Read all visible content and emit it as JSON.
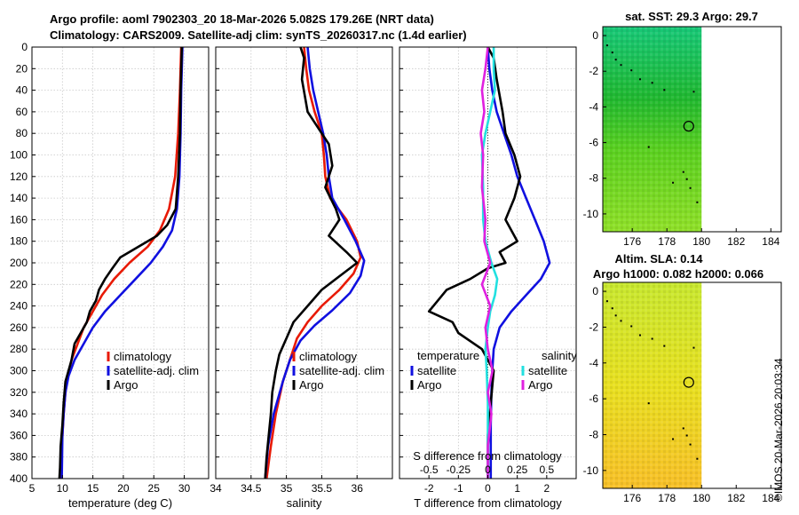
{
  "header": {
    "title_line1": "Argo profile: aoml 7902303_20 18-Mar-2026 5.082S 179.26E (NRT data)",
    "title_line2": "Climatology: CARS2009. Satellite-adj clim: synTS_20260317.nc (1.4d earlier)"
  },
  "stamp": "©IMOS 20-Mar-2026 20:03:34",
  "colors": {
    "climatology": "#e81a05",
    "satellite": "#1010e0",
    "argo": "#000000",
    "cyan": "#22e0e0",
    "magenta": "#e020e0"
  },
  "chart_data": [
    {
      "id": "temperature",
      "type": "line",
      "xlabel": "temperature (deg C)",
      "ylabel": "",
      "xlim": [
        5,
        34
      ],
      "ylim": [
        400,
        0
      ],
      "xticks": [
        5,
        10,
        15,
        20,
        25,
        30
      ],
      "yticks": [
        0,
        20,
        40,
        60,
        80,
        100,
        120,
        140,
        160,
        180,
        200,
        220,
        240,
        260,
        280,
        300,
        320,
        340,
        360,
        380,
        400
      ],
      "legend": [
        "climatology",
        "satellite-adj. clim",
        "Argo"
      ],
      "series": [
        {
          "name": "climatology",
          "color_key": "climatology",
          "x": [
            29.5,
            29.4,
            29.3,
            29.0,
            28.5,
            27.5,
            26.0,
            24.0,
            21.0,
            18.5,
            16.5,
            15.0,
            13.5,
            12.5,
            11.5,
            10.9,
            10.5,
            10.2,
            10.0,
            9.8,
            9.7
          ],
          "y": [
            0,
            20,
            40,
            80,
            120,
            150,
            170,
            185,
            200,
            215,
            230,
            245,
            260,
            275,
            290,
            305,
            320,
            340,
            360,
            380,
            400
          ]
        },
        {
          "name": "satellite-adj. clim",
          "color_key": "satellite",
          "x": [
            29.7,
            29.6,
            29.5,
            29.4,
            29.2,
            28.8,
            28.0,
            26.5,
            24.5,
            22.0,
            19.5,
            17.0,
            15.0,
            13.5,
            12.0,
            11.0,
            10.5,
            10.2,
            10.0,
            9.9
          ],
          "y": [
            0,
            20,
            40,
            80,
            120,
            150,
            170,
            185,
            200,
            215,
            230,
            245,
            260,
            275,
            290,
            305,
            320,
            340,
            360,
            400
          ]
        },
        {
          "name": "Argo",
          "color_key": "argo",
          "x": [
            29.6,
            29.5,
            29.4,
            29.3,
            29.0,
            28.6,
            27.2,
            25.5,
            22.5,
            19.5,
            18.2,
            17.0,
            16.0,
            15.5,
            14.5,
            14.0,
            13.0,
            12.0,
            11.5,
            11.0,
            10.5,
            10.2,
            10.0,
            9.7,
            9.6,
            9.5
          ],
          "y": [
            0,
            20,
            40,
            80,
            120,
            150,
            165,
            175,
            185,
            195,
            205,
            215,
            225,
            235,
            245,
            255,
            265,
            275,
            290,
            300,
            310,
            330,
            350,
            370,
            390,
            400
          ]
        }
      ]
    },
    {
      "id": "salinity",
      "type": "line",
      "xlabel": "salinity",
      "ylabel": "",
      "xlim": [
        34,
        36.5
      ],
      "ylim": [
        400,
        0
      ],
      "xticks": [
        34,
        34.5,
        35,
        35.5,
        36
      ],
      "legend": [
        "climatology",
        "satellite-adj. clim",
        "Argo"
      ],
      "series": [
        {
          "name": "climatology",
          "color_key": "climatology",
          "x": [
            35.25,
            35.28,
            35.32,
            35.4,
            35.5,
            35.53,
            35.55,
            35.62,
            35.85,
            36.0,
            36.05,
            35.95,
            35.75,
            35.5,
            35.3,
            35.15,
            35.05,
            34.95,
            34.85,
            34.78,
            34.72
          ],
          "y": [
            0,
            20,
            40,
            60,
            80,
            100,
            120,
            140,
            160,
            180,
            195,
            210,
            225,
            240,
            255,
            270,
            290,
            310,
            340,
            370,
            400
          ]
        },
        {
          "name": "satellite-adj. clim",
          "color_key": "satellite",
          "x": [
            35.3,
            35.33,
            35.38,
            35.45,
            35.52,
            35.57,
            35.6,
            35.65,
            35.82,
            35.98,
            36.1,
            36.05,
            35.9,
            35.65,
            35.4,
            35.2,
            35.05,
            34.95,
            34.82,
            34.74,
            34.7
          ],
          "y": [
            0,
            20,
            40,
            60,
            80,
            100,
            120,
            140,
            160,
            180,
            198,
            212,
            228,
            244,
            258,
            272,
            290,
            310,
            340,
            370,
            400
          ]
        },
        {
          "name": "Argo",
          "color_key": "argo",
          "x": [
            35.2,
            35.25,
            35.22,
            35.3,
            35.45,
            35.6,
            35.65,
            35.55,
            35.7,
            35.75,
            35.6,
            35.85,
            36.0,
            35.8,
            35.5,
            35.3,
            35.1,
            35.0,
            34.9,
            34.85,
            34.8,
            34.78,
            34.75,
            34.72,
            34.7
          ],
          "y": [
            0,
            10,
            30,
            60,
            75,
            90,
            110,
            130,
            150,
            160,
            175,
            190,
            200,
            210,
            225,
            240,
            255,
            270,
            285,
            300,
            320,
            340,
            360,
            380,
            400
          ]
        }
      ]
    },
    {
      "id": "differences",
      "type": "line",
      "xlabel": "T difference from climatology",
      "xlabel_top": "S difference from climatology",
      "xlim": [
        -3,
        3
      ],
      "xlim_top": [
        -0.75,
        0.75
      ],
      "ylim": [
        400,
        0
      ],
      "xticks": [
        -2,
        -1,
        0,
        1,
        2
      ],
      "xticks_top": [
        -0.5,
        -0.25,
        0,
        0.25,
        0.5
      ],
      "legend_temperature_title": "temperature",
      "legend_salinity_title": "salinity",
      "legend_temperature": [
        "satellite",
        "Argo"
      ],
      "legend_salinity": [
        "satellite",
        "Argo"
      ],
      "series": [
        {
          "name": "T satellite",
          "color_key": "satellite",
          "x": [
            0.0,
            0.05,
            0.15,
            0.3,
            0.55,
            0.8,
            1.0,
            1.3,
            1.6,
            1.9,
            2.1,
            1.8,
            1.3,
            0.8,
            0.4,
            0.2,
            0.15,
            0.12,
            0.1,
            0.1,
            0.1
          ],
          "y": [
            0,
            20,
            40,
            60,
            80,
            100,
            120,
            140,
            160,
            180,
            200,
            215,
            230,
            245,
            260,
            280,
            300,
            320,
            350,
            380,
            400
          ]
        },
        {
          "name": "T Argo",
          "color_key": "argo",
          "x": [
            0.0,
            0.2,
            0.3,
            0.5,
            0.6,
            0.9,
            1.1,
            0.9,
            0.6,
            1.0,
            0.4,
            0.6,
            0.0,
            -0.6,
            -1.4,
            -2.0,
            -1.2,
            -1.0,
            -0.2,
            0.2,
            0.1,
            0.0,
            0.0
          ],
          "y": [
            0,
            10,
            30,
            60,
            80,
            100,
            120,
            140,
            160,
            180,
            190,
            200,
            205,
            215,
            225,
            245,
            255,
            265,
            280,
            300,
            330,
            360,
            400
          ]
        },
        {
          "name": "S satellite",
          "color_key": "cyan",
          "x": [
            0.05,
            0.05,
            0.06,
            0.02,
            -0.02,
            -0.05,
            -0.04,
            -0.04,
            -0.02,
            0.03,
            0.08,
            0.06,
            0.02,
            0.0,
            -0.02,
            -0.01,
            0.0,
            0.0,
            0.0
          ],
          "y": [
            0,
            20,
            40,
            60,
            80,
            100,
            130,
            160,
            180,
            200,
            215,
            230,
            245,
            260,
            280,
            300,
            330,
            360,
            400
          ]
        },
        {
          "name": "S Argo",
          "color_key": "magenta",
          "x": [
            0.0,
            -0.02,
            -0.05,
            -0.03,
            -0.06,
            -0.04,
            -0.05,
            -0.02,
            -0.03,
            0.02,
            -0.05,
            0.02,
            -0.02,
            0.0,
            0.04,
            0.0,
            0.03,
            0.0,
            0.0
          ],
          "y": [
            0,
            20,
            40,
            60,
            80,
            100,
            130,
            160,
            180,
            200,
            220,
            240,
            260,
            280,
            300,
            320,
            340,
            370,
            400
          ]
        }
      ]
    },
    {
      "id": "sst-map",
      "type": "heatmap",
      "title": "sat. SST: 29.3  Argo: 29.7",
      "xlim": [
        174.3,
        184.6
      ],
      "ylim": [
        -11,
        0.5
      ],
      "xticks": [
        176,
        178,
        180,
        182,
        184
      ],
      "yticks": [
        0,
        -2,
        -4,
        -6,
        -8,
        -10
      ],
      "marker": {
        "lon": 179.26,
        "lat": -5.082
      }
    },
    {
      "id": "sla-map",
      "type": "heatmap",
      "title_line1": "Altim. SLA: 0.14",
      "title_line2": "Argo h1000: 0.082 h2000: 0.066",
      "xlim": [
        174.3,
        184.6
      ],
      "ylim": [
        -11,
        0.5
      ],
      "xticks": [
        176,
        178,
        180,
        182,
        184
      ],
      "yticks": [
        0,
        -2,
        -4,
        -6,
        -8,
        -10
      ],
      "marker": {
        "lon": 179.26,
        "lat": -5.082
      }
    }
  ]
}
